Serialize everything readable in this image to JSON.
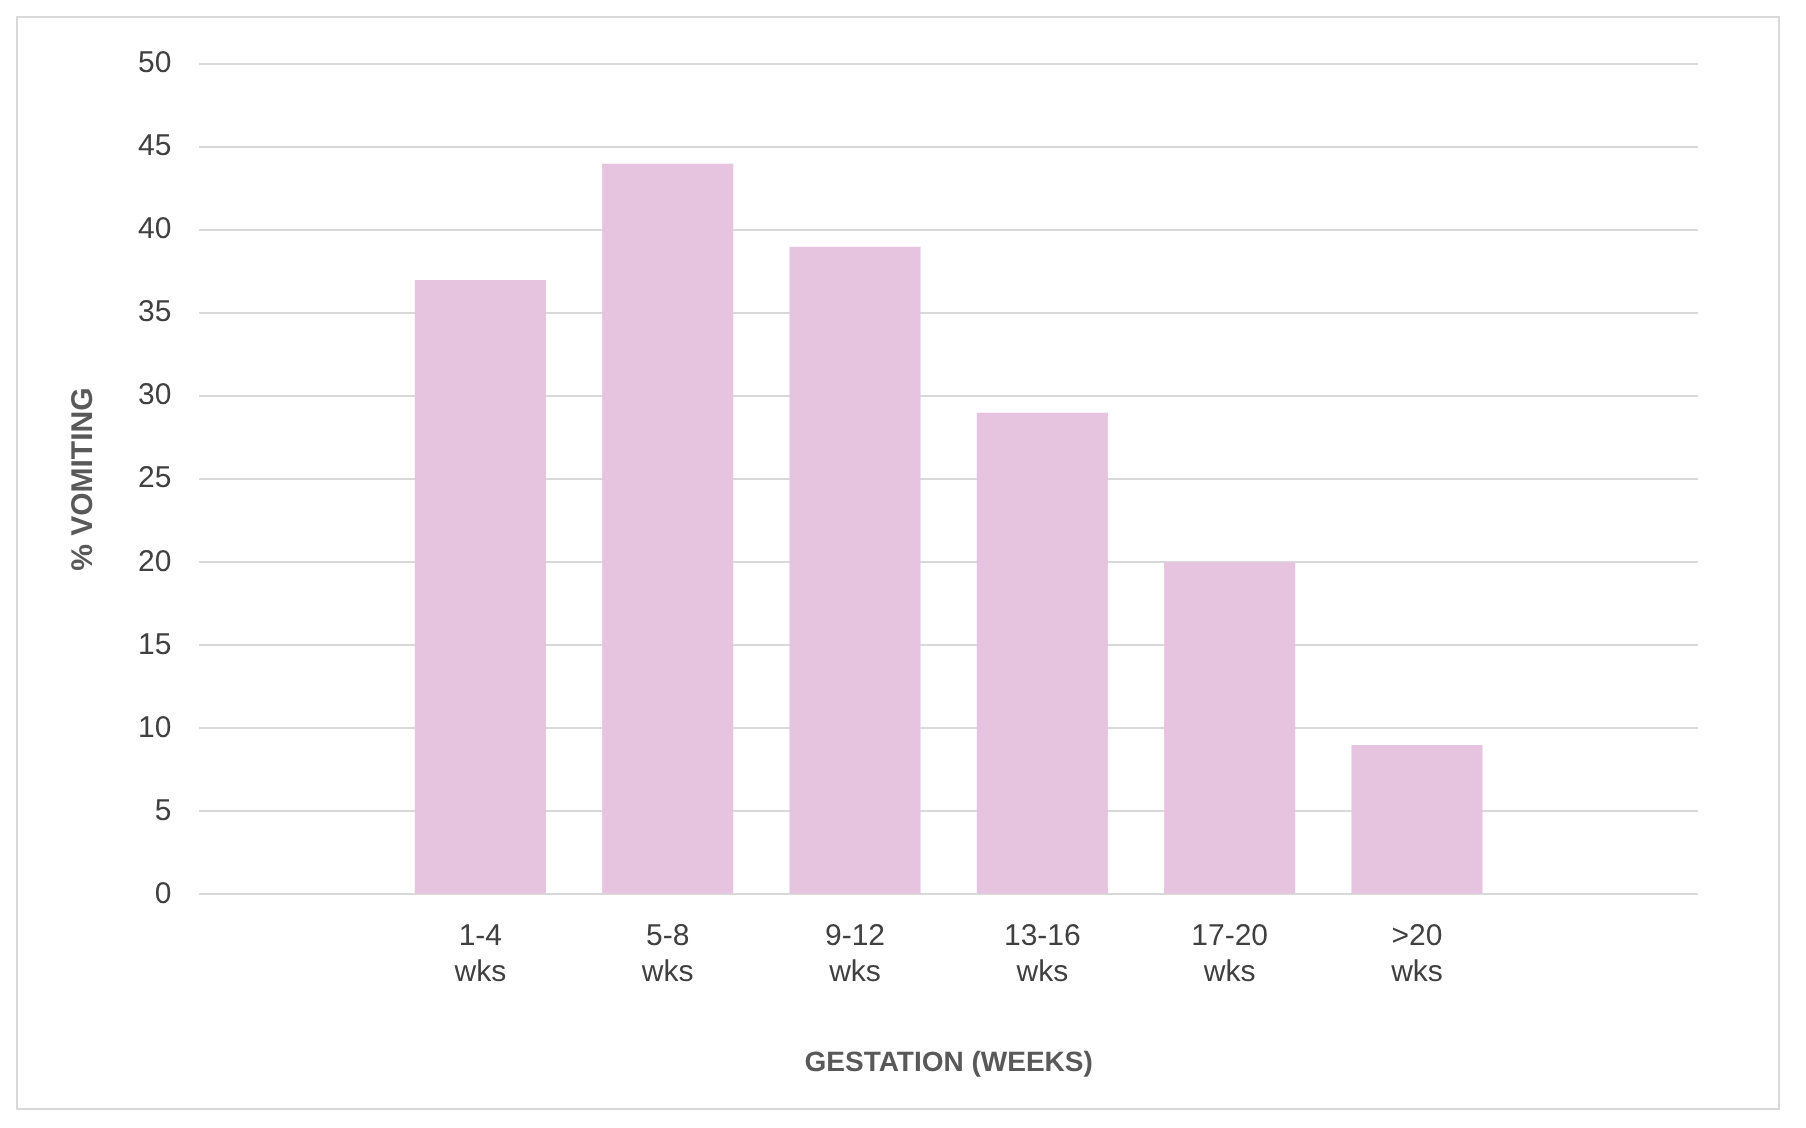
{
  "chart_data": {
    "type": "bar",
    "xlabel": "GESTATION (WEEKS)",
    "ylabel": "% VOMITING",
    "categories": [
      null,
      "1-4 wks",
      "5-8 wks",
      "9-12 wks",
      "13-16 wks",
      "17-20 wks",
      ">20 wks",
      null
    ],
    "values": [
      null,
      37,
      44,
      39,
      29,
      20,
      9,
      null
    ],
    "color": "#e6c4e0",
    "ylim": [
      0,
      50
    ],
    "yticks": [
      0,
      5,
      10,
      15,
      20,
      25,
      30,
      35,
      40,
      45,
      50
    ],
    "grid": "y"
  }
}
